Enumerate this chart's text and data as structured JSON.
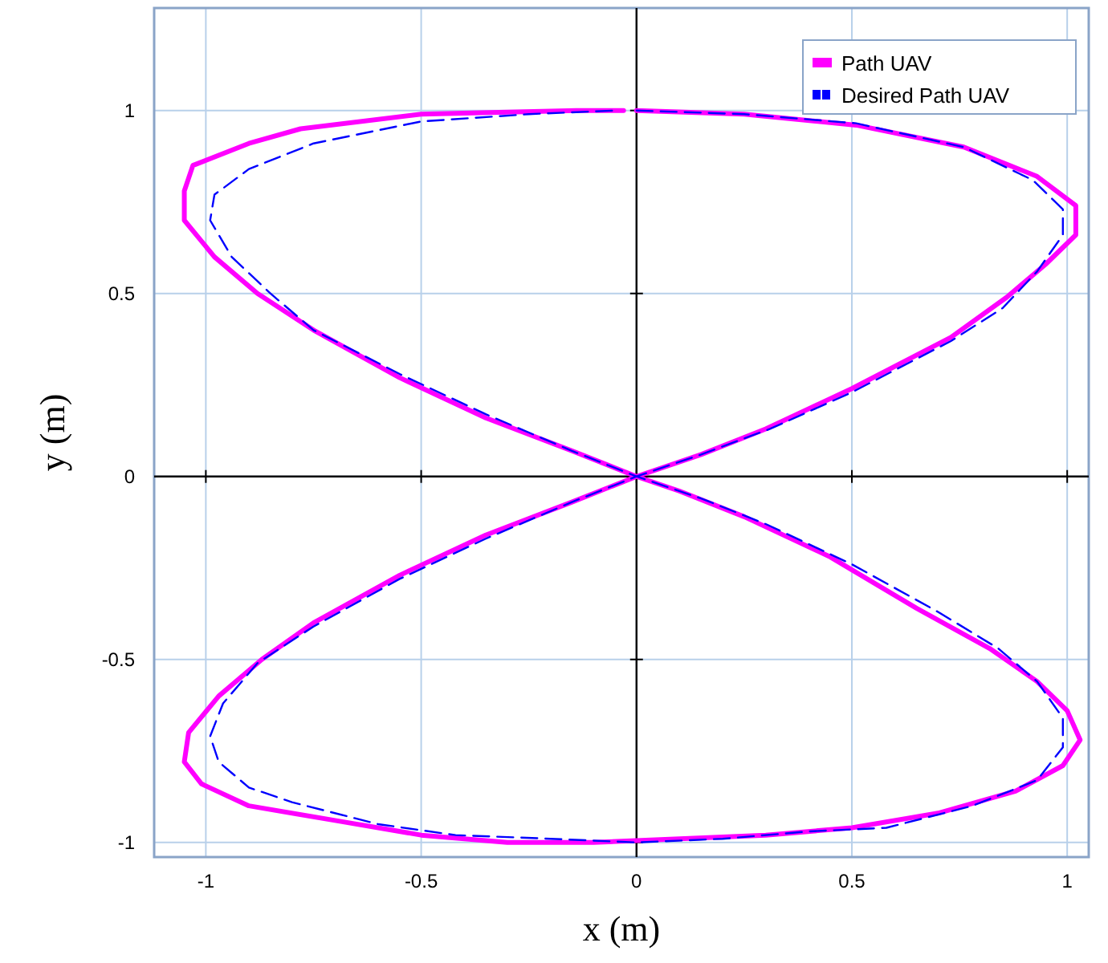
{
  "chart_data": {
    "type": "line",
    "xlabel": "x (m)",
    "ylabel": "y (m)",
    "xlim": [
      -1.12,
      1.05
    ],
    "ylim": [
      -1.04,
      1.28
    ],
    "xticks": [
      -1,
      -0.5,
      0,
      0.5,
      1
    ],
    "yticks": [
      -1,
      -0.5,
      0,
      0.5,
      1
    ],
    "grid": true,
    "legend": "top right",
    "marker": "none",
    "series": [
      {
        "name": "Path UAV",
        "color": "#ff00ff",
        "line_style": "solid",
        "x": [
          0,
          0.25,
          0.51,
          0.76,
          0.93,
          1.02,
          1.02,
          0.95,
          0.86,
          0.73,
          0.5,
          0.3,
          0.15,
          0,
          -0.15,
          -0.35,
          -0.55,
          -0.75,
          -0.87,
          -0.97,
          -1.04,
          -1.05,
          -1.01,
          -0.9,
          -0.7,
          -0.5,
          -0.3,
          -0.1,
          0.1,
          0.3,
          0.5,
          0.7,
          0.88,
          0.99,
          1.03,
          1.0,
          0.93,
          0.82,
          0.65,
          0.45,
          0.25,
          0.1,
          0,
          -0.15,
          -0.35,
          -0.55,
          -0.75,
          -0.88,
          -0.98,
          -1.05,
          -1.05,
          -1.03,
          -0.9,
          -0.78,
          -0.5,
          -0.14,
          -0.03
        ],
        "values": [
          1,
          0.99,
          0.96,
          0.9,
          0.82,
          0.74,
          0.66,
          0.58,
          0.49,
          0.38,
          0.24,
          0.13,
          0.06,
          0,
          -0.07,
          -0.16,
          -0.27,
          -0.4,
          -0.5,
          -0.6,
          -0.7,
          -0.78,
          -0.84,
          -0.9,
          -0.94,
          -0.98,
          -1.0,
          -1.0,
          -0.99,
          -0.98,
          -0.96,
          -0.92,
          -0.86,
          -0.79,
          -0.72,
          -0.64,
          -0.56,
          -0.47,
          -0.36,
          -0.22,
          -0.11,
          -0.04,
          0,
          0.07,
          0.16,
          0.27,
          0.4,
          0.5,
          0.6,
          0.7,
          0.78,
          0.85,
          0.91,
          0.95,
          0.99,
          1.0,
          1.0
        ]
      },
      {
        "name": "Desired Path UAV",
        "color": "#0000ff",
        "line_style": "dashed",
        "x": [
          0,
          0.25,
          0.51,
          0.76,
          0.92,
          0.99,
          0.99,
          0.93,
          0.85,
          0.73,
          0.5,
          0.31,
          0.15,
          0,
          -0.15,
          -0.35,
          -0.55,
          -0.75,
          -0.88,
          -0.96,
          -0.99,
          -0.97,
          -0.9,
          -0.8,
          -0.6,
          -0.42,
          -0.2,
          0,
          0.2,
          0.4,
          0.58,
          0.78,
          0.93,
          0.99,
          0.99,
          0.93,
          0.84,
          0.7,
          0.5,
          0.3,
          0.15,
          0,
          -0.15,
          -0.35,
          -0.55,
          -0.75,
          -0.85,
          -0.94,
          -0.99,
          -0.98,
          -0.9,
          -0.75,
          -0.5,
          -0.25,
          -0.05
        ],
        "values": [
          1,
          0.99,
          0.965,
          0.9,
          0.81,
          0.73,
          0.66,
          0.56,
          0.46,
          0.37,
          0.23,
          0.13,
          0.06,
          0,
          -0.07,
          -0.17,
          -0.28,
          -0.41,
          -0.51,
          -0.62,
          -0.71,
          -0.78,
          -0.85,
          -0.89,
          -0.95,
          -0.98,
          -0.99,
          -1,
          -0.99,
          -0.97,
          -0.96,
          -0.9,
          -0.83,
          -0.74,
          -0.66,
          -0.56,
          -0.47,
          -0.37,
          -0.24,
          -0.13,
          -0.06,
          0,
          0.07,
          0.17,
          0.28,
          0.4,
          0.5,
          0.6,
          0.7,
          0.77,
          0.84,
          0.91,
          0.97,
          0.99,
          1.0
        ]
      }
    ]
  }
}
